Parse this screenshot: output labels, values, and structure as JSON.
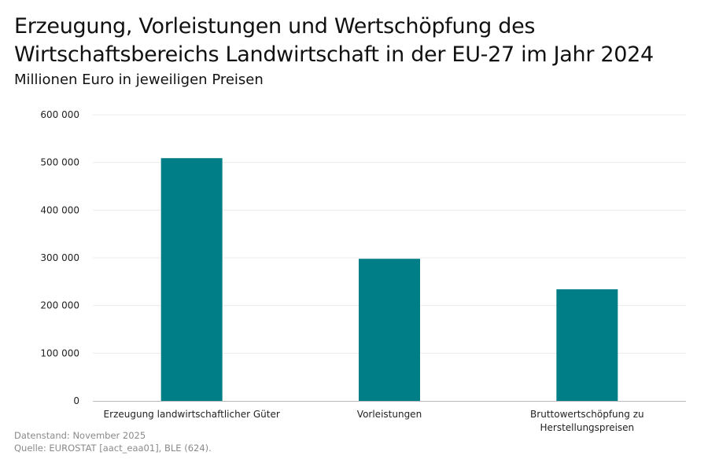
{
  "chart_data": {
    "type": "bar",
    "title_lines": [
      "Erzeugung, Vorleistungen und Wertschöpfung des",
      "Wirtschaftsbereichs Landwirtschaft in der EU-27 im Jahr 2024"
    ],
    "subtitle": "Millionen Euro in jeweiligen Preisen",
    "categories": [
      [
        "Erzeugung landwirtschaftlicher Güter"
      ],
      [
        "Vorleistungen"
      ],
      [
        "Bruttowertschöpfung zu",
        "Herstellungspreisen"
      ]
    ],
    "values": [
      509000,
      298000,
      234000
    ],
    "ylim": [
      0,
      600000
    ],
    "yticks": [
      0,
      100000,
      200000,
      300000,
      400000,
      500000,
      600000
    ],
    "ytick_labels": [
      "0",
      "100 000",
      "200 000",
      "300 000",
      "400 000",
      "500 000",
      "600 000"
    ],
    "grid": true,
    "bar_color": "#007e87"
  },
  "footer": {
    "date": "Datenstand: November 2025",
    "source": "Quelle: EUROSTAT [aact_eaa01], BLE (624)."
  }
}
